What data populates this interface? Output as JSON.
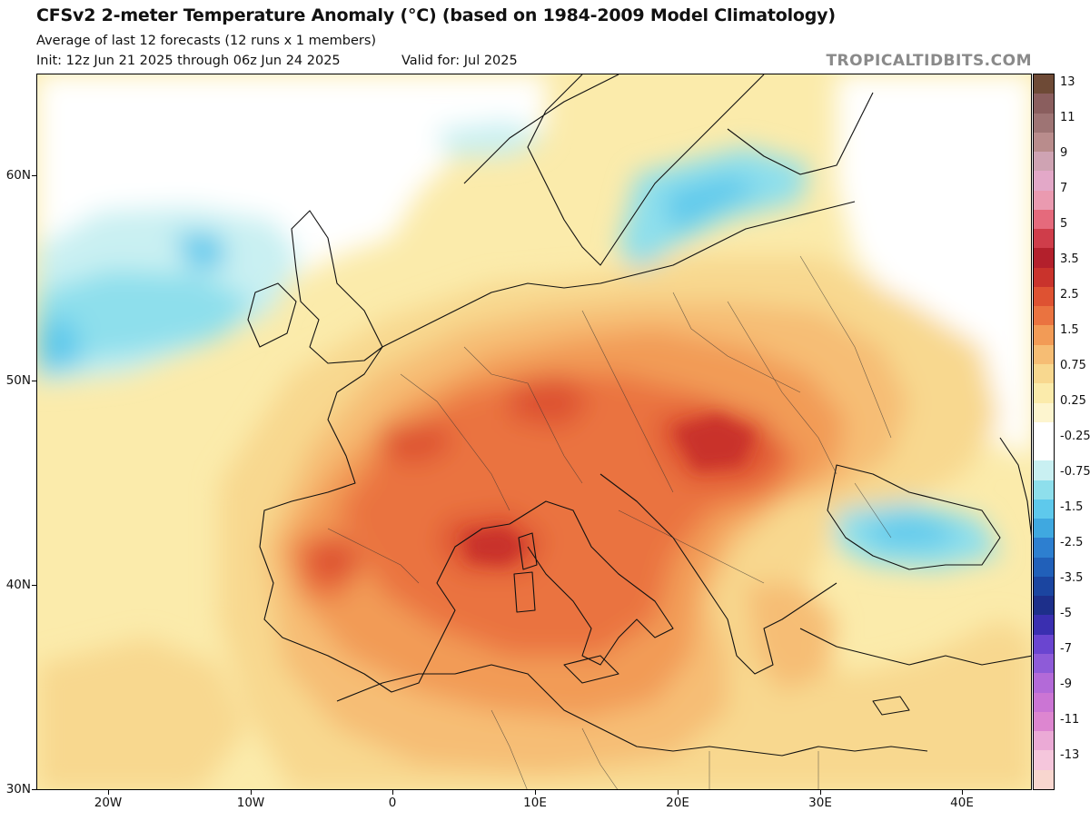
{
  "header": {
    "title": "CFSv2 2-meter Temperature Anomaly (°C) (based on 1984-2009 Model Climatology)",
    "subtitle": "Average of last 12 forecasts (12 runs x 1 members)",
    "init": "Init: 12z Jun 21 2025 through 06z Jun 24 2025",
    "valid": "Valid for: Jul 2025",
    "brand": "TROPICALTIDBITS.COM"
  },
  "map": {
    "lat_labels": [
      "60N",
      "50N",
      "40N",
      "30N"
    ],
    "lon_labels": [
      "20W",
      "10W",
      "0",
      "10E",
      "20E",
      "30E",
      "40E"
    ]
  },
  "colorbar": {
    "labels": [
      "13",
      "11",
      "9",
      "7",
      "5",
      "3.5",
      "2.5",
      "1.5",
      "0.75",
      "0.25",
      "-0.25",
      "-0.75",
      "-1.5",
      "-2.5",
      "-3.5",
      "-5",
      "-7",
      "-9",
      "-11",
      "-13"
    ],
    "colors": [
      "#6e4a36",
      "#8a5e5e",
      "#9e7474",
      "#b98c8c",
      "#cfa3b3",
      "#e3a8c8",
      "#ea9ab0",
      "#e56a7c",
      "#cf3d4a",
      "#b3202c",
      "#c9332c",
      "#de5232",
      "#ea7340",
      "#f29b56",
      "#f6bd74",
      "#f8d88f",
      "#fbebab",
      "#fdf5cf",
      "#ffffff",
      "#ffffff",
      "#c9f0f2",
      "#8edfec",
      "#5ec9ec",
      "#3fa8e0",
      "#2d7fd0",
      "#2160b9",
      "#1b45a0",
      "#1d2f8a",
      "#3a2fb0",
      "#6a45d0",
      "#8e5bd8",
      "#b36ad8",
      "#cb75d4",
      "#dd86d0",
      "#ebaad6",
      "#f5c6dc",
      "#f8d6cf"
    ],
    "accent_warm": "#e9643a",
    "accent_cool": "#6cc8ee"
  }
}
